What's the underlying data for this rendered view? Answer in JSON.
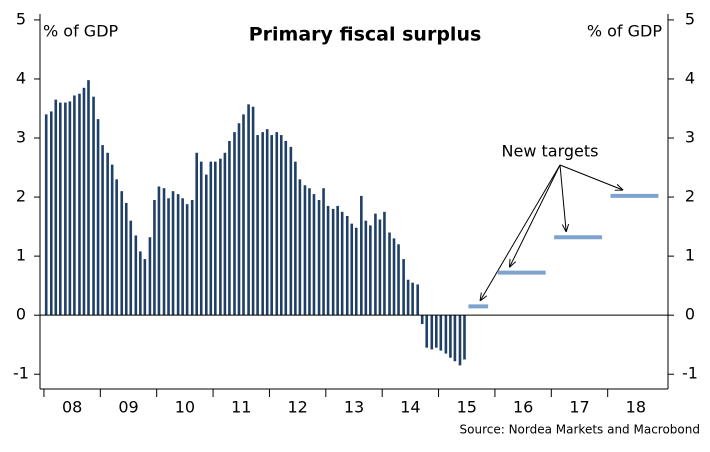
{
  "chart_data": {
    "type": "bar",
    "title": "Primary fiscal surplus",
    "y_label_left": "% of GDP",
    "y_label_right": "% of GDP",
    "source": "Source: Nordea Markets and Macrobond",
    "xlim": [
      2007.93,
      2019.07
    ],
    "xticks": [
      {
        "value": 2008,
        "label": "08"
      },
      {
        "value": 2009,
        "label": "09"
      },
      {
        "value": 2010,
        "label": "10"
      },
      {
        "value": 2011,
        "label": "11"
      },
      {
        "value": 2012,
        "label": "12"
      },
      {
        "value": 2013,
        "label": "13"
      },
      {
        "value": 2014,
        "label": "14"
      },
      {
        "value": 2015,
        "label": "15"
      },
      {
        "value": 2016,
        "label": "16"
      },
      {
        "value": 2017,
        "label": "17"
      },
      {
        "value": 2018,
        "label": "18"
      }
    ],
    "ylim": [
      -1.25,
      5.1
    ],
    "yticks": [
      -1,
      0,
      1,
      2,
      3,
      4,
      5
    ],
    "series": [
      {
        "color": "#1f3f66",
        "x": [
          2008.04,
          2008.13,
          2008.21,
          2008.29,
          2008.38,
          2008.46,
          2008.54,
          2008.63,
          2008.71,
          2008.79,
          2008.88,
          2008.96,
          2009.04,
          2009.13,
          2009.21,
          2009.29,
          2009.38,
          2009.46,
          2009.54,
          2009.63,
          2009.71,
          2009.79,
          2009.88,
          2009.96,
          2010.04,
          2010.13,
          2010.21,
          2010.29,
          2010.38,
          2010.46,
          2010.54,
          2010.63,
          2010.71,
          2010.79,
          2010.88,
          2010.96,
          2011.04,
          2011.13,
          2011.21,
          2011.29,
          2011.38,
          2011.46,
          2011.54,
          2011.63,
          2011.71,
          2011.79,
          2011.88,
          2011.96,
          2012.04,
          2012.13,
          2012.21,
          2012.29,
          2012.38,
          2012.46,
          2012.54,
          2012.63,
          2012.71,
          2012.79,
          2012.88,
          2012.96,
          2013.04,
          2013.13,
          2013.21,
          2013.29,
          2013.38,
          2013.46,
          2013.54,
          2013.63,
          2013.71,
          2013.79,
          2013.88,
          2013.96,
          2014.04,
          2014.13,
          2014.21,
          2014.29,
          2014.38,
          2014.46,
          2014.54,
          2014.63,
          2014.71,
          2014.79,
          2014.88,
          2014.96,
          2015.04,
          2015.13,
          2015.21,
          2015.29,
          2015.38,
          2015.46
        ],
        "values": [
          3.4,
          3.45,
          3.65,
          3.6,
          3.6,
          3.62,
          3.72,
          3.75,
          3.85,
          3.98,
          3.7,
          3.32,
          2.88,
          2.75,
          2.55,
          2.3,
          2.1,
          1.9,
          1.6,
          1.35,
          1.08,
          0.95,
          1.32,
          1.95,
          2.18,
          2.15,
          1.98,
          2.1,
          2.05,
          1.98,
          1.88,
          1.95,
          2.75,
          2.6,
          2.38,
          2.6,
          2.6,
          2.65,
          2.75,
          2.95,
          3.1,
          3.25,
          3.4,
          3.57,
          3.53,
          3.05,
          3.1,
          3.15,
          3.05,
          3.1,
          3.05,
          2.95,
          2.85,
          2.6,
          2.3,
          2.2,
          2.15,
          2.05,
          1.95,
          2.15,
          1.85,
          1.8,
          1.85,
          1.75,
          1.68,
          1.55,
          1.48,
          2.02,
          1.6,
          1.52,
          1.72,
          1.62,
          1.75,
          1.4,
          1.3,
          1.2,
          0.95,
          0.6,
          0.55,
          0.52,
          -0.15,
          -0.55,
          -0.58,
          -0.55,
          -0.6,
          -0.65,
          -0.72,
          -0.78,
          -0.85,
          -0.75
        ]
      }
    ],
    "targets": {
      "annotation": "New targets",
      "color": "#7ea3cc",
      "x_start": [
        2015.53,
        2016.05,
        2017.05,
        2018.05
      ],
      "x_end": [
        2015.88,
        2016.9,
        2017.9,
        2018.9
      ],
      "values": [
        0.15,
        0.72,
        1.32,
        2.02
      ]
    }
  }
}
